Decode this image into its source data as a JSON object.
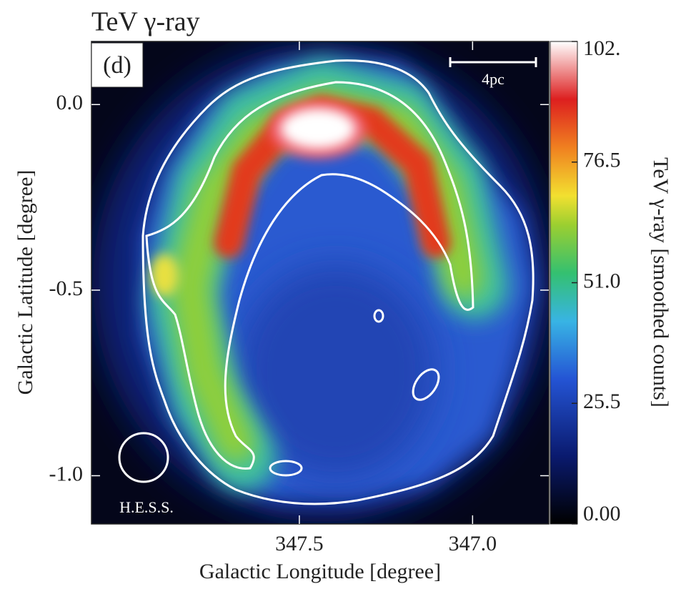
{
  "chart_data": {
    "type": "heatmap",
    "title": "TeV γ-ray",
    "panel_label": "(d)",
    "scale_bar_label": "4pc",
    "beam_label": "H.E.S.S.",
    "x_label": "Galactic Longitude [degree]",
    "y_label": "Galactic Latitude [degree]",
    "colorbar_label": "TeV γ-ray [smoothed counts]",
    "xlim": [
      348.1,
      346.78
    ],
    "ylim": [
      -1.13,
      0.17
    ],
    "xticks": [
      347.5,
      {
        "value": 347.0,
        "label": "347.0"
      }
    ],
    "yticks": [
      {
        "value": 0.0,
        "label": "0.0"
      },
      -0.5,
      {
        "value": -1.0,
        "label": "-1.0"
      }
    ],
    "clim": [
      0,
      102
    ],
    "cticks": [
      {
        "value": 0,
        "label": "0.00"
      },
      25.5,
      {
        "value": 51.0,
        "label": "51.0"
      },
      76.5,
      {
        "value": 102,
        "label": "102."
      }
    ]
  }
}
